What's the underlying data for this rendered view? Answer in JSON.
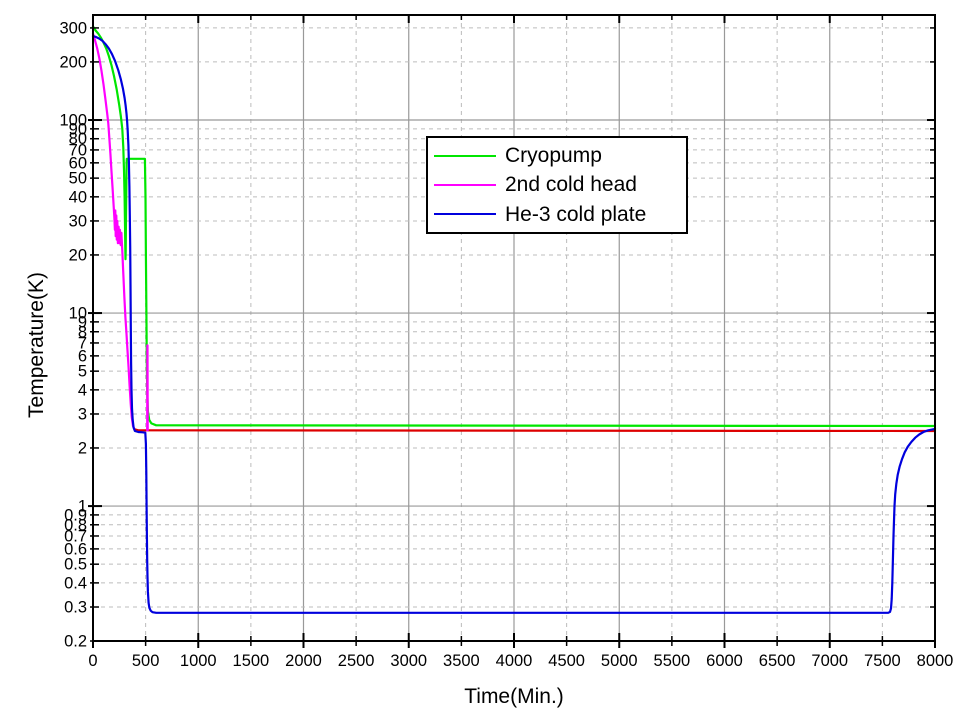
{
  "axes": {
    "x_label": "Time(Min.)",
    "y_label": "Temperature(K)"
  },
  "legend": {
    "items": [
      {
        "label": "Cryopump",
        "color": "#00e600"
      },
      {
        "label": "2nd cold head",
        "color": "#ff00ff"
      },
      {
        "label": "He-3 cold plate",
        "color": "#0000dd"
      }
    ]
  },
  "chart_data": {
    "type": "line",
    "title": "",
    "xlabel": "Time(Min.)",
    "ylabel": "Temperature(K)",
    "x_scale": "linear",
    "y_scale": "log",
    "x_range": [
      0,
      8000
    ],
    "y_range": [
      0.2,
      350
    ],
    "x_ticks": [
      0,
      500,
      1000,
      1500,
      2000,
      2500,
      3000,
      3500,
      4000,
      4500,
      5000,
      5500,
      6000,
      6500,
      7000,
      7500,
      8000
    ],
    "x_major_every": 1000,
    "y_tick_labels": [
      300,
      200,
      100,
      90,
      80,
      70,
      60,
      50,
      40,
      30,
      20,
      10,
      9,
      8,
      7,
      6,
      5,
      4,
      3,
      2,
      1,
      0.9,
      0.8,
      0.7,
      0.6,
      0.5,
      0.4,
      0.3,
      0.2
    ],
    "y_major": [
      100,
      10,
      1
    ],
    "grid": {
      "solid_color": "#999999",
      "dashed_color": "#bcbcbc",
      "legend_position": "upper center",
      "grid_on": true
    },
    "series": [
      {
        "name": "Cryopump",
        "color": "#00e600",
        "segments": [
          {
            "color": "#00e600",
            "points": [
              [
                0,
                305
              ],
              [
                25,
                291
              ],
              [
                50,
                280
              ],
              [
                75,
                267
              ],
              [
                100,
                252
              ],
              [
                125,
                235
              ],
              [
                150,
                215
              ],
              [
                175,
                193
              ],
              [
                200,
                169
              ],
              [
                225,
                144
              ],
              [
                250,
                119
              ],
              [
                265,
                104
              ],
              [
                278,
                90
              ],
              [
                288,
                72
              ],
              [
                295,
                55
              ],
              [
                300,
                40
              ],
              [
                304,
                29
              ],
              [
                307,
                22
              ],
              [
                309,
                19
              ],
              [
                311,
                21
              ],
              [
                314,
                32
              ],
              [
                317,
                48
              ],
              [
                319,
                60
              ],
              [
                321,
                63
              ],
              [
                493,
                63
              ],
              [
                499,
                40
              ],
              [
                503,
                20
              ],
              [
                507,
                10
              ],
              [
                511,
                5.5
              ],
              [
                516,
                3.8
              ],
              [
                522,
                3.1
              ],
              [
                534,
                2.8
              ],
              [
                555,
                2.68
              ],
              [
                600,
                2.62
              ],
              [
                8000,
                2.6
              ]
            ]
          }
        ]
      },
      {
        "name": "2nd cold head",
        "color": "#ff00ff",
        "segments": [
          {
            "color": "#ff00ff",
            "points": [
              [
                0,
                280
              ],
              [
                20,
                258
              ],
              [
                40,
                235
              ],
              [
                60,
                209
              ],
              [
                80,
                181
              ],
              [
                100,
                153
              ],
              [
                120,
                126
              ],
              [
                135,
                108
              ],
              [
                145,
                96
              ],
              [
                155,
                81
              ],
              [
                165,
                67
              ],
              [
                175,
                55
              ],
              [
                185,
                45
              ],
              [
                195,
                37
              ],
              [
                203,
                31
              ],
              [
                208,
                27
              ],
              [
                212,
                34
              ],
              [
                216,
                25
              ],
              [
                221,
                32
              ],
              [
                226,
                24
              ],
              [
                231,
                30
              ],
              [
                237,
                23
              ],
              [
                243,
                28
              ],
              [
                250,
                23
              ],
              [
                256,
                27
              ],
              [
                263,
                22.5
              ],
              [
                270,
                26
              ],
              [
                278,
                21
              ],
              [
                288,
                16
              ],
              [
                298,
                12
              ],
              [
                308,
                9.5
              ],
              [
                318,
                7.8
              ],
              [
                328,
                6.4
              ],
              [
                338,
                5.2
              ],
              [
                348,
                4.2
              ],
              [
                358,
                3.4
              ],
              [
                368,
                2.9
              ],
              [
                380,
                2.6
              ],
              [
                395,
                2.5
              ]
            ]
          },
          {
            "color": "#dd0000",
            "points": [
              [
                395,
                2.5
              ],
              [
                430,
                2.47
              ],
              [
                8000,
                2.45
              ]
            ]
          },
          {
            "color": "#ff00ff",
            "points": [
              [
                515,
                2.47
              ],
              [
                516.5,
                6.8
              ],
              [
                518,
                6.8
              ],
              [
                519.5,
                2.47
              ]
            ]
          }
        ]
      },
      {
        "name": "He-3 cold plate",
        "color": "#0000dd",
        "segments": [
          {
            "color": "#0000dd",
            "points": [
              [
                0,
                272
              ],
              [
                30,
                269
              ],
              [
                60,
                264
              ],
              [
                90,
                257
              ],
              [
                120,
                247
              ],
              [
                150,
                235
              ],
              [
                180,
                220
              ],
              [
                210,
                202
              ],
              [
                240,
                181
              ],
              [
                265,
                162
              ],
              [
                285,
                145
              ],
              [
                300,
                130
              ],
              [
                310,
                119
              ],
              [
                318,
                108
              ],
              [
                324,
                99
              ],
              [
                330,
                88
              ],
              [
                336,
                74
              ],
              [
                341,
                60
              ],
              [
                346,
                45
              ],
              [
                350,
                32
              ],
              [
                353,
                22
              ],
              [
                356,
                14
              ],
              [
                359,
                8.5
              ],
              [
                362,
                5.5
              ],
              [
                366,
                4
              ],
              [
                371,
                3.2
              ],
              [
                377,
                2.8
              ],
              [
                386,
                2.55
              ],
              [
                398,
                2.45
              ],
              [
                430,
                2.42
              ],
              [
                470,
                2.41
              ],
              [
                497,
                2.4
              ],
              [
                503,
                2.1
              ],
              [
                506,
                1.5
              ],
              [
                509,
                1.0
              ],
              [
                512,
                0.7
              ],
              [
                515,
                0.52
              ],
              [
                518,
                0.43
              ],
              [
                522,
                0.36
              ],
              [
                528,
                0.315
              ],
              [
                536,
                0.297
              ],
              [
                548,
                0.287
              ],
              [
                565,
                0.282
              ],
              [
                600,
                0.28
              ],
              [
                7555,
                0.28
              ],
              [
                7572,
                0.283
              ],
              [
                7582,
                0.295
              ],
              [
                7589,
                0.33
              ],
              [
                7594,
                0.4
              ],
              [
                7598,
                0.48
              ],
              [
                7602,
                0.58
              ],
              [
                7606,
                0.7
              ],
              [
                7610,
                0.84
              ],
              [
                7615,
                1.0
              ],
              [
                7622,
                1.15
              ],
              [
                7632,
                1.3
              ],
              [
                7646,
                1.45
              ],
              [
                7664,
                1.6
              ],
              [
                7686,
                1.75
              ],
              [
                7712,
                1.9
              ],
              [
                7742,
                2.03
              ],
              [
                7776,
                2.15
              ],
              [
                7812,
                2.26
              ],
              [
                7850,
                2.35
              ],
              [
                7890,
                2.42
              ],
              [
                7935,
                2.47
              ],
              [
                8000,
                2.51
              ]
            ]
          }
        ]
      }
    ]
  }
}
